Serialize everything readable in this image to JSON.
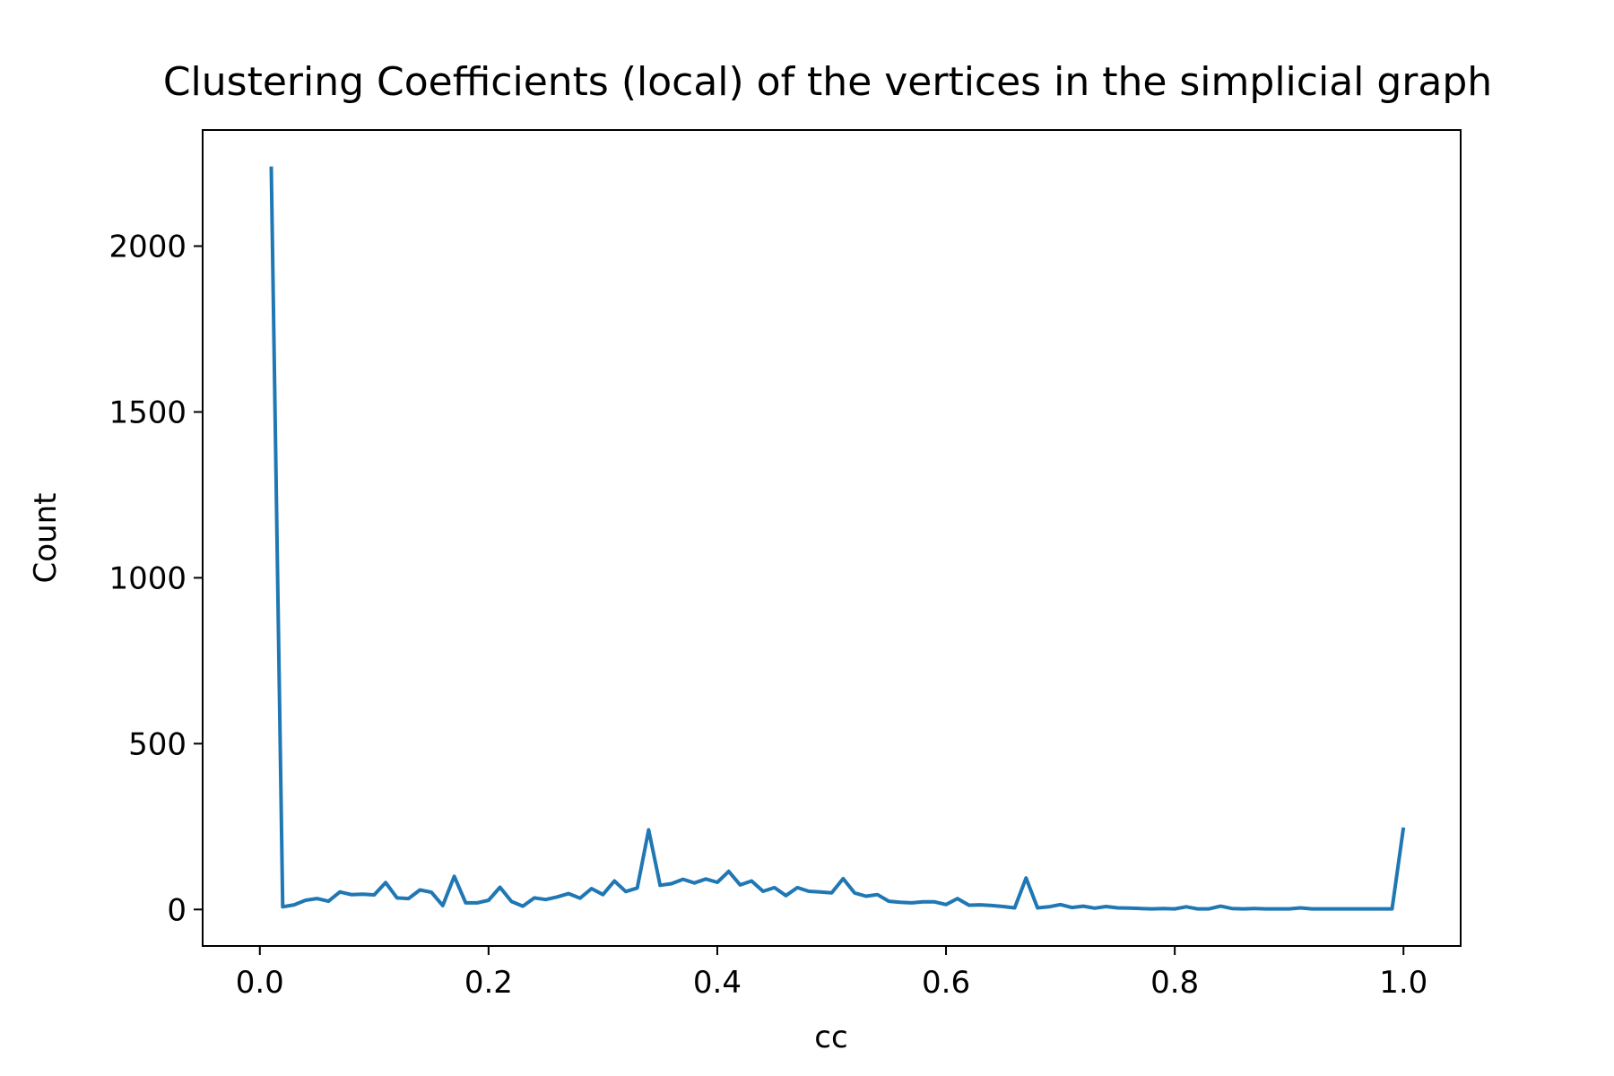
{
  "chart_data": {
    "type": "line",
    "title": "Clustering Coefficients (local) of the vertices in the simplicial graph",
    "xlabel": "cc",
    "ylabel": "Count",
    "xlim": [
      -0.05,
      1.05
    ],
    "ylim": [
      -110,
      2350
    ],
    "xticks": [
      0.0,
      0.2,
      0.4,
      0.6,
      0.8,
      1.0
    ],
    "xtick_labels": [
      "0.0",
      "0.2",
      "0.4",
      "0.6",
      "0.8",
      "1.0"
    ],
    "yticks": [
      0,
      500,
      1000,
      1500,
      2000
    ],
    "ytick_labels": [
      "0",
      "500",
      "1000",
      "1500",
      "2000"
    ],
    "grid": false,
    "legend": "none",
    "series": [
      {
        "color": "#1f77b4",
        "x": [
          0.01,
          0.02,
          0.03,
          0.04,
          0.05,
          0.06,
          0.07,
          0.08,
          0.09,
          0.1,
          0.11,
          0.12,
          0.13,
          0.14,
          0.15,
          0.16,
          0.17,
          0.18,
          0.19,
          0.2,
          0.21,
          0.22,
          0.23,
          0.24,
          0.25,
          0.26,
          0.27,
          0.28,
          0.29,
          0.3,
          0.31,
          0.32,
          0.33,
          0.34,
          0.35,
          0.36,
          0.37,
          0.38,
          0.39,
          0.4,
          0.41,
          0.42,
          0.43,
          0.44,
          0.45,
          0.46,
          0.47,
          0.48,
          0.49,
          0.5,
          0.51,
          0.52,
          0.53,
          0.54,
          0.55,
          0.56,
          0.57,
          0.58,
          0.59,
          0.6,
          0.61,
          0.62,
          0.63,
          0.64,
          0.65,
          0.66,
          0.67,
          0.68,
          0.69,
          0.7,
          0.71,
          0.72,
          0.73,
          0.74,
          0.75,
          0.76,
          0.77,
          0.78,
          0.79,
          0.8,
          0.81,
          0.82,
          0.83,
          0.84,
          0.85,
          0.86,
          0.87,
          0.88,
          0.89,
          0.9,
          0.91,
          0.92,
          0.93,
          0.94,
          0.95,
          0.96,
          0.97,
          0.98,
          0.99,
          1.0
        ],
        "y": [
          2240,
          8,
          14,
          28,
          33,
          25,
          53,
          45,
          46,
          44,
          81,
          35,
          33,
          59,
          52,
          12,
          100,
          20,
          20,
          28,
          67,
          24,
          10,
          35,
          30,
          38,
          48,
          34,
          63,
          45,
          86,
          54,
          65,
          240,
          73,
          78,
          91,
          80,
          92,
          82,
          115,
          74,
          86,
          55,
          66,
          42,
          66,
          55,
          53,
          50,
          93,
          50,
          40,
          45,
          25,
          22,
          20,
          23,
          23,
          15,
          33,
          13,
          14,
          12,
          9,
          5,
          95,
          5,
          8,
          15,
          6,
          10,
          4,
          9,
          5,
          4,
          3,
          2,
          3,
          2,
          8,
          2,
          2,
          10,
          3,
          2,
          3,
          2,
          2,
          2,
          5,
          2,
          2,
          2,
          2,
          2,
          2,
          2,
          2,
          247
        ]
      }
    ]
  }
}
